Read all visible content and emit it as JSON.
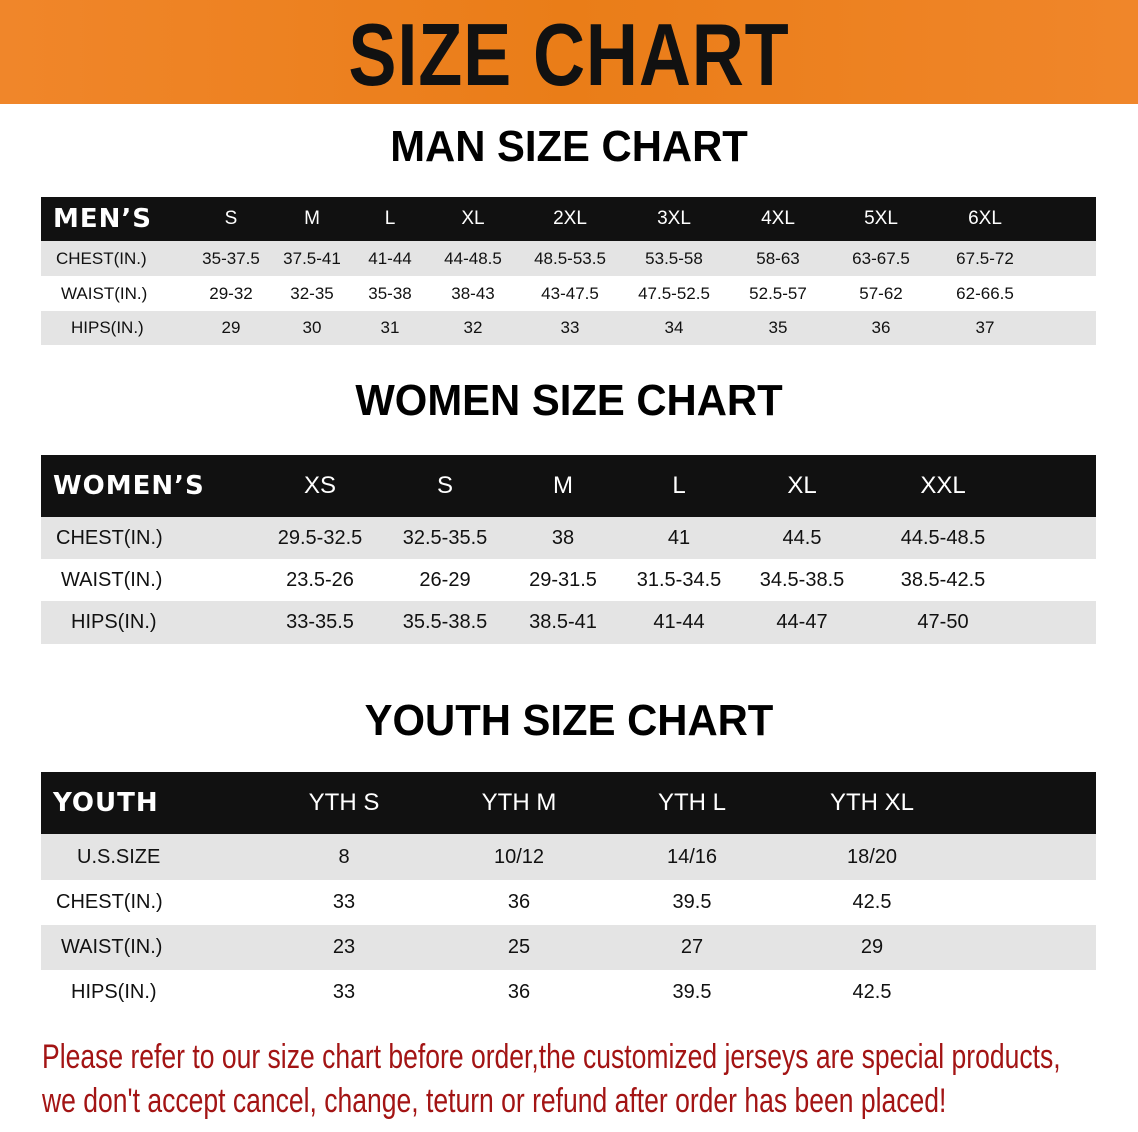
{
  "banner_title": "SIZE CHART",
  "men": {
    "title": "MAN SIZE CHART",
    "header": "MEN’S",
    "sizes": [
      "S",
      "M",
      "L",
      "XL",
      "2XL",
      "3XL",
      "4XL",
      "5XL",
      "6XL"
    ],
    "rows": [
      {
        "label": "CHEST(IN.)",
        "values": [
          "35-37.5",
          "37.5-41",
          "41-44",
          "44-48.5",
          "48.5-53.5",
          "53.5-58",
          "58-63",
          "63-67.5",
          "67.5-72"
        ]
      },
      {
        "label": "WAIST(IN.)",
        "values": [
          "29-32",
          "32-35",
          "35-38",
          "38-43",
          "43-47.5",
          "47.5-52.5",
          "52.5-57",
          "57-62",
          "62-66.5"
        ]
      },
      {
        "label": "HIPS(IN.)",
        "values": [
          "29",
          "30",
          "31",
          "32",
          "33",
          "34",
          "35",
          "36",
          "37"
        ]
      }
    ]
  },
  "women": {
    "title": "WOMEN SIZE CHART",
    "header": "WOMEN’S",
    "sizes": [
      "XS",
      "S",
      "M",
      "L",
      "XL",
      "XXL"
    ],
    "rows": [
      {
        "label": "CHEST(IN.)",
        "values": [
          "29.5-32.5",
          "32.5-35.5",
          "38",
          "41",
          "44.5",
          "44.5-48.5"
        ]
      },
      {
        "label": "WAIST(IN.)",
        "values": [
          "23.5-26",
          "26-29",
          "29-31.5",
          "31.5-34.5",
          "34.5-38.5",
          "38.5-42.5"
        ]
      },
      {
        "label": "HIPS(IN.)",
        "values": [
          "33-35.5",
          "35.5-38.5",
          "38.5-41",
          "41-44",
          "44-47",
          "47-50"
        ]
      }
    ]
  },
  "youth": {
    "title": "YOUTH SIZE CHART",
    "header": "YOUTH",
    "sizes": [
      "YTH S",
      "YTH M",
      "YTH L",
      "YTH XL"
    ],
    "rows": [
      {
        "label": "U.S.SIZE",
        "values": [
          "8",
          "10/12",
          "14/16",
          "18/20"
        ]
      },
      {
        "label": "CHEST(IN.)",
        "values": [
          "33",
          "36",
          "39.5",
          "42.5"
        ]
      },
      {
        "label": "WAIST(IN.)",
        "values": [
          "23",
          "25",
          "27",
          "29"
        ]
      },
      {
        "label": "HIPS(IN.)",
        "values": [
          "33",
          "36",
          "39.5",
          "42.5"
        ]
      }
    ]
  },
  "note": {
    "line1": "Please refer to our size chart before order,the customized jerseys are special products,",
    "line2": "we don't accept cancel, change, teturn or refund after order has been placed!"
  },
  "colors": {
    "banner": "#ea7d18",
    "header_bg": "#111111",
    "row_alt": "#e4e4e4",
    "note": "#a31414"
  }
}
